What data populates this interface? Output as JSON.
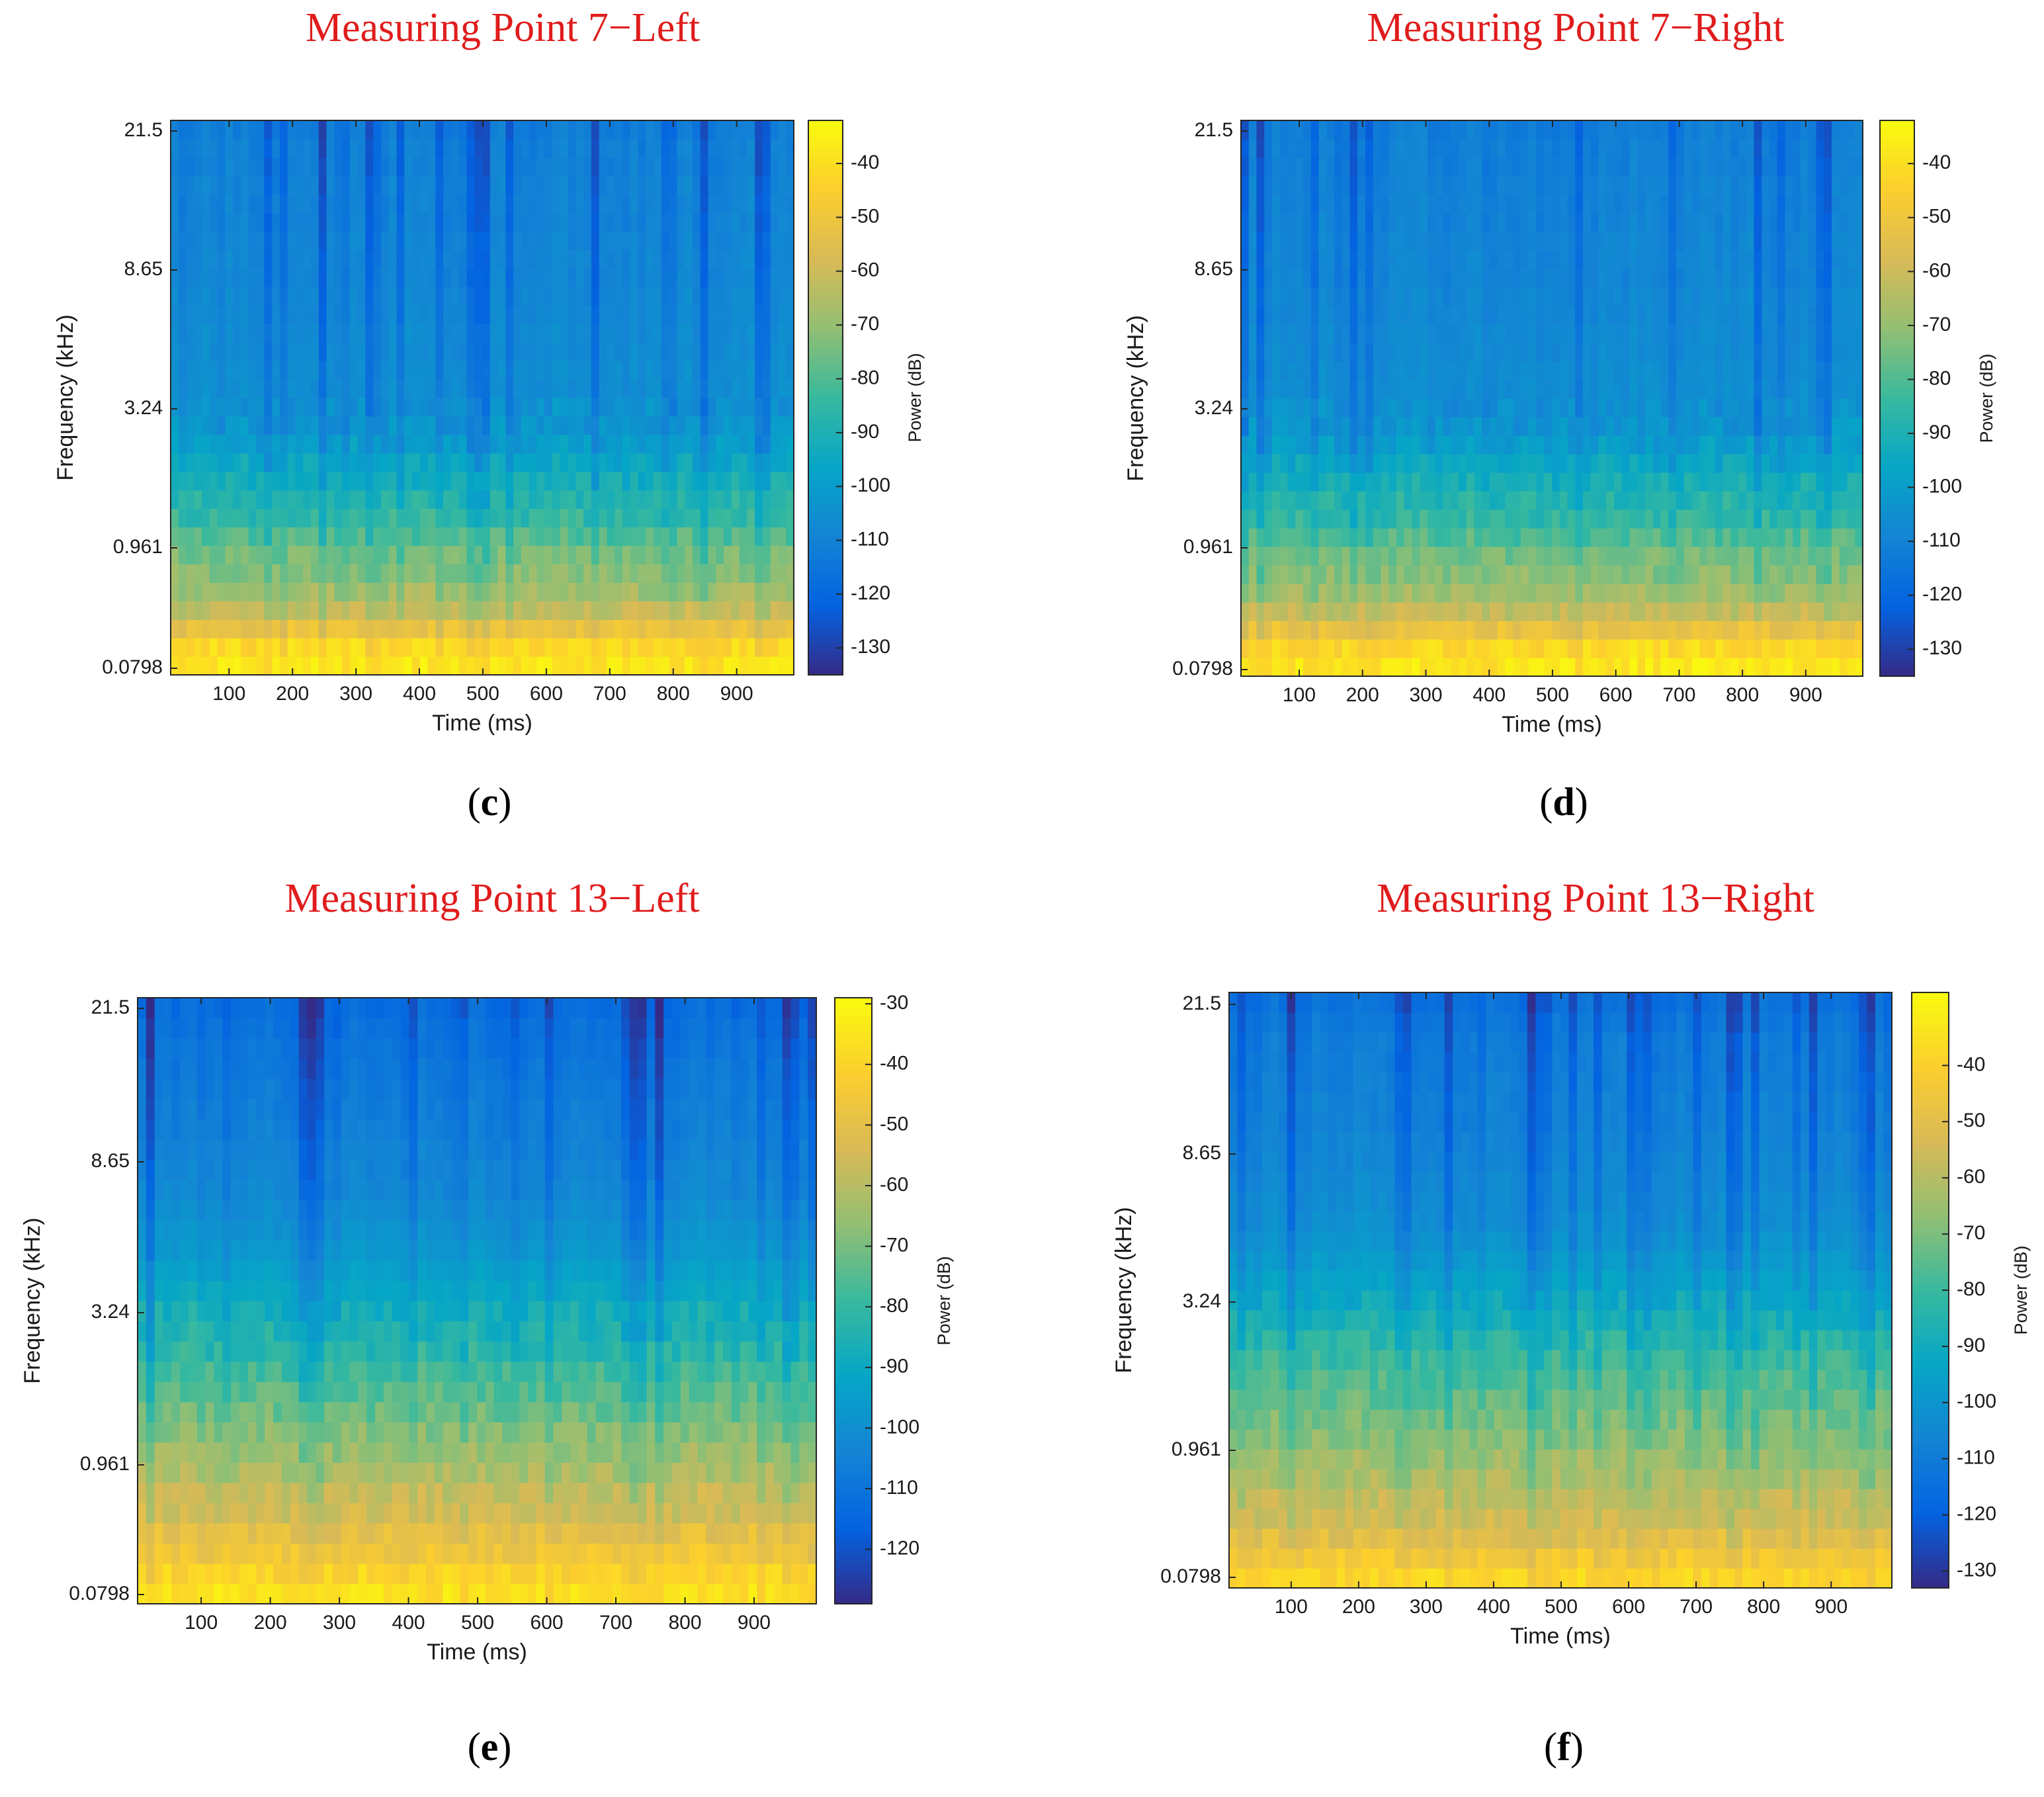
{
  "chart_data": [
    {
      "type": "heatmap",
      "title": "Measuring Point 7−Left",
      "caption_letter": "c",
      "xlabel": "Time (ms)",
      "ylabel": "Frequency (kHz)",
      "colorbar_label": "Power (dB)",
      "x_ticks": [
        "100",
        "200",
        "300",
        "400",
        "500",
        "600",
        "700",
        "800",
        "900"
      ],
      "xlim": [
        8,
        990
      ],
      "y_ticks": [
        "21.5",
        "8.65",
        "3.24",
        "0.961",
        "0.0798"
      ],
      "colorbar_ticks": [
        "-40",
        "-50",
        "-60",
        "-70",
        "-80",
        "-90",
        "-100",
        "-110",
        "-120",
        "-130"
      ],
      "clim": [
        -135,
        -32
      ],
      "power_profile_db": [
        -38,
        -42,
        -52,
        -62,
        -68,
        -72,
        -75,
        -80,
        -85,
        -88,
        -92,
        -96,
        -100,
        -103,
        -105,
        -106,
        -106,
        -107,
        -107,
        -108,
        -108,
        -109,
        -109,
        -109,
        -110,
        -110,
        -110,
        -111,
        -111,
        -112
      ],
      "seed": 7
    },
    {
      "type": "heatmap",
      "title": "Measuring Point 7−Right",
      "caption_letter": "d",
      "xlabel": "Time (ms)",
      "ylabel": "Frequency (kHz)",
      "colorbar_label": "Power (dB)",
      "x_ticks": [
        "100",
        "200",
        "300",
        "400",
        "500",
        "600",
        "700",
        "800",
        "900"
      ],
      "xlim": [
        8,
        990
      ],
      "y_ticks": [
        "21.5",
        "8.65",
        "3.24",
        "0.961",
        "0.0798"
      ],
      "colorbar_ticks": [
        "-40",
        "-50",
        "-60",
        "-70",
        "-80",
        "-90",
        "-100",
        "-110",
        "-120",
        "-130"
      ],
      "clim": [
        -135,
        -32
      ],
      "power_profile_db": [
        -38,
        -42,
        -52,
        -62,
        -68,
        -72,
        -75,
        -80,
        -85,
        -88,
        -92,
        -96,
        -100,
        -103,
        -105,
        -106,
        -106,
        -107,
        -107,
        -108,
        -108,
        -109,
        -109,
        -109,
        -110,
        -110,
        -110,
        -111,
        -111,
        -112
      ],
      "seed": 11
    },
    {
      "type": "heatmap",
      "title": "Measuring Point 13−Left",
      "caption_letter": "e",
      "xlabel": "Time (ms)",
      "ylabel": "Frequency (kHz)",
      "colorbar_label": "Power (dB)",
      "x_ticks": [
        "100",
        "200",
        "300",
        "400",
        "500",
        "600",
        "700",
        "800",
        "900"
      ],
      "xlim": [
        8,
        990
      ],
      "y_ticks": [
        "21.5",
        "8.65",
        "3.24",
        "0.961",
        "0.0798"
      ],
      "colorbar_ticks": [
        "-30",
        "-40",
        "-50",
        "-60",
        "-70",
        "-80",
        "-90",
        "-100",
        "-110",
        "-120"
      ],
      "clim": [
        -129,
        -29
      ],
      "power_profile_db": [
        -36,
        -40,
        -46,
        -50,
        -55,
        -58,
        -62,
        -65,
        -68,
        -72,
        -75,
        -78,
        -82,
        -85,
        -88,
        -91,
        -94,
        -97,
        -99,
        -101,
        -103,
        -104,
        -105,
        -106,
        -107,
        -108,
        -109,
        -110,
        -111,
        -113
      ],
      "seed": 13
    },
    {
      "type": "heatmap",
      "title": "Measuring Point 13−Right",
      "caption_letter": "f",
      "xlabel": "Time (ms)",
      "ylabel": "Frequency (kHz)",
      "colorbar_label": "Power (dB)",
      "x_ticks": [
        "100",
        "200",
        "300",
        "400",
        "500",
        "600",
        "700",
        "800",
        "900"
      ],
      "xlim": [
        8,
        990
      ],
      "y_ticks": [
        "21.5",
        "8.65",
        "3.24",
        "0.961",
        "0.0798"
      ],
      "colorbar_ticks": [
        "-40",
        "-50",
        "-60",
        "-70",
        "-80",
        "-90",
        "-100",
        "-110",
        "-120",
        "-130"
      ],
      "clim": [
        -133,
        -27
      ],
      "power_profile_db": [
        -38,
        -44,
        -50,
        -55,
        -58,
        -62,
        -65,
        -68,
        -71,
        -74,
        -77,
        -80,
        -84,
        -88,
        -92,
        -95,
        -98,
        -101,
        -103,
        -104,
        -105,
        -106,
        -107,
        -108,
        -108,
        -109,
        -110,
        -110,
        -112,
        -114
      ],
      "seed": 17
    }
  ]
}
